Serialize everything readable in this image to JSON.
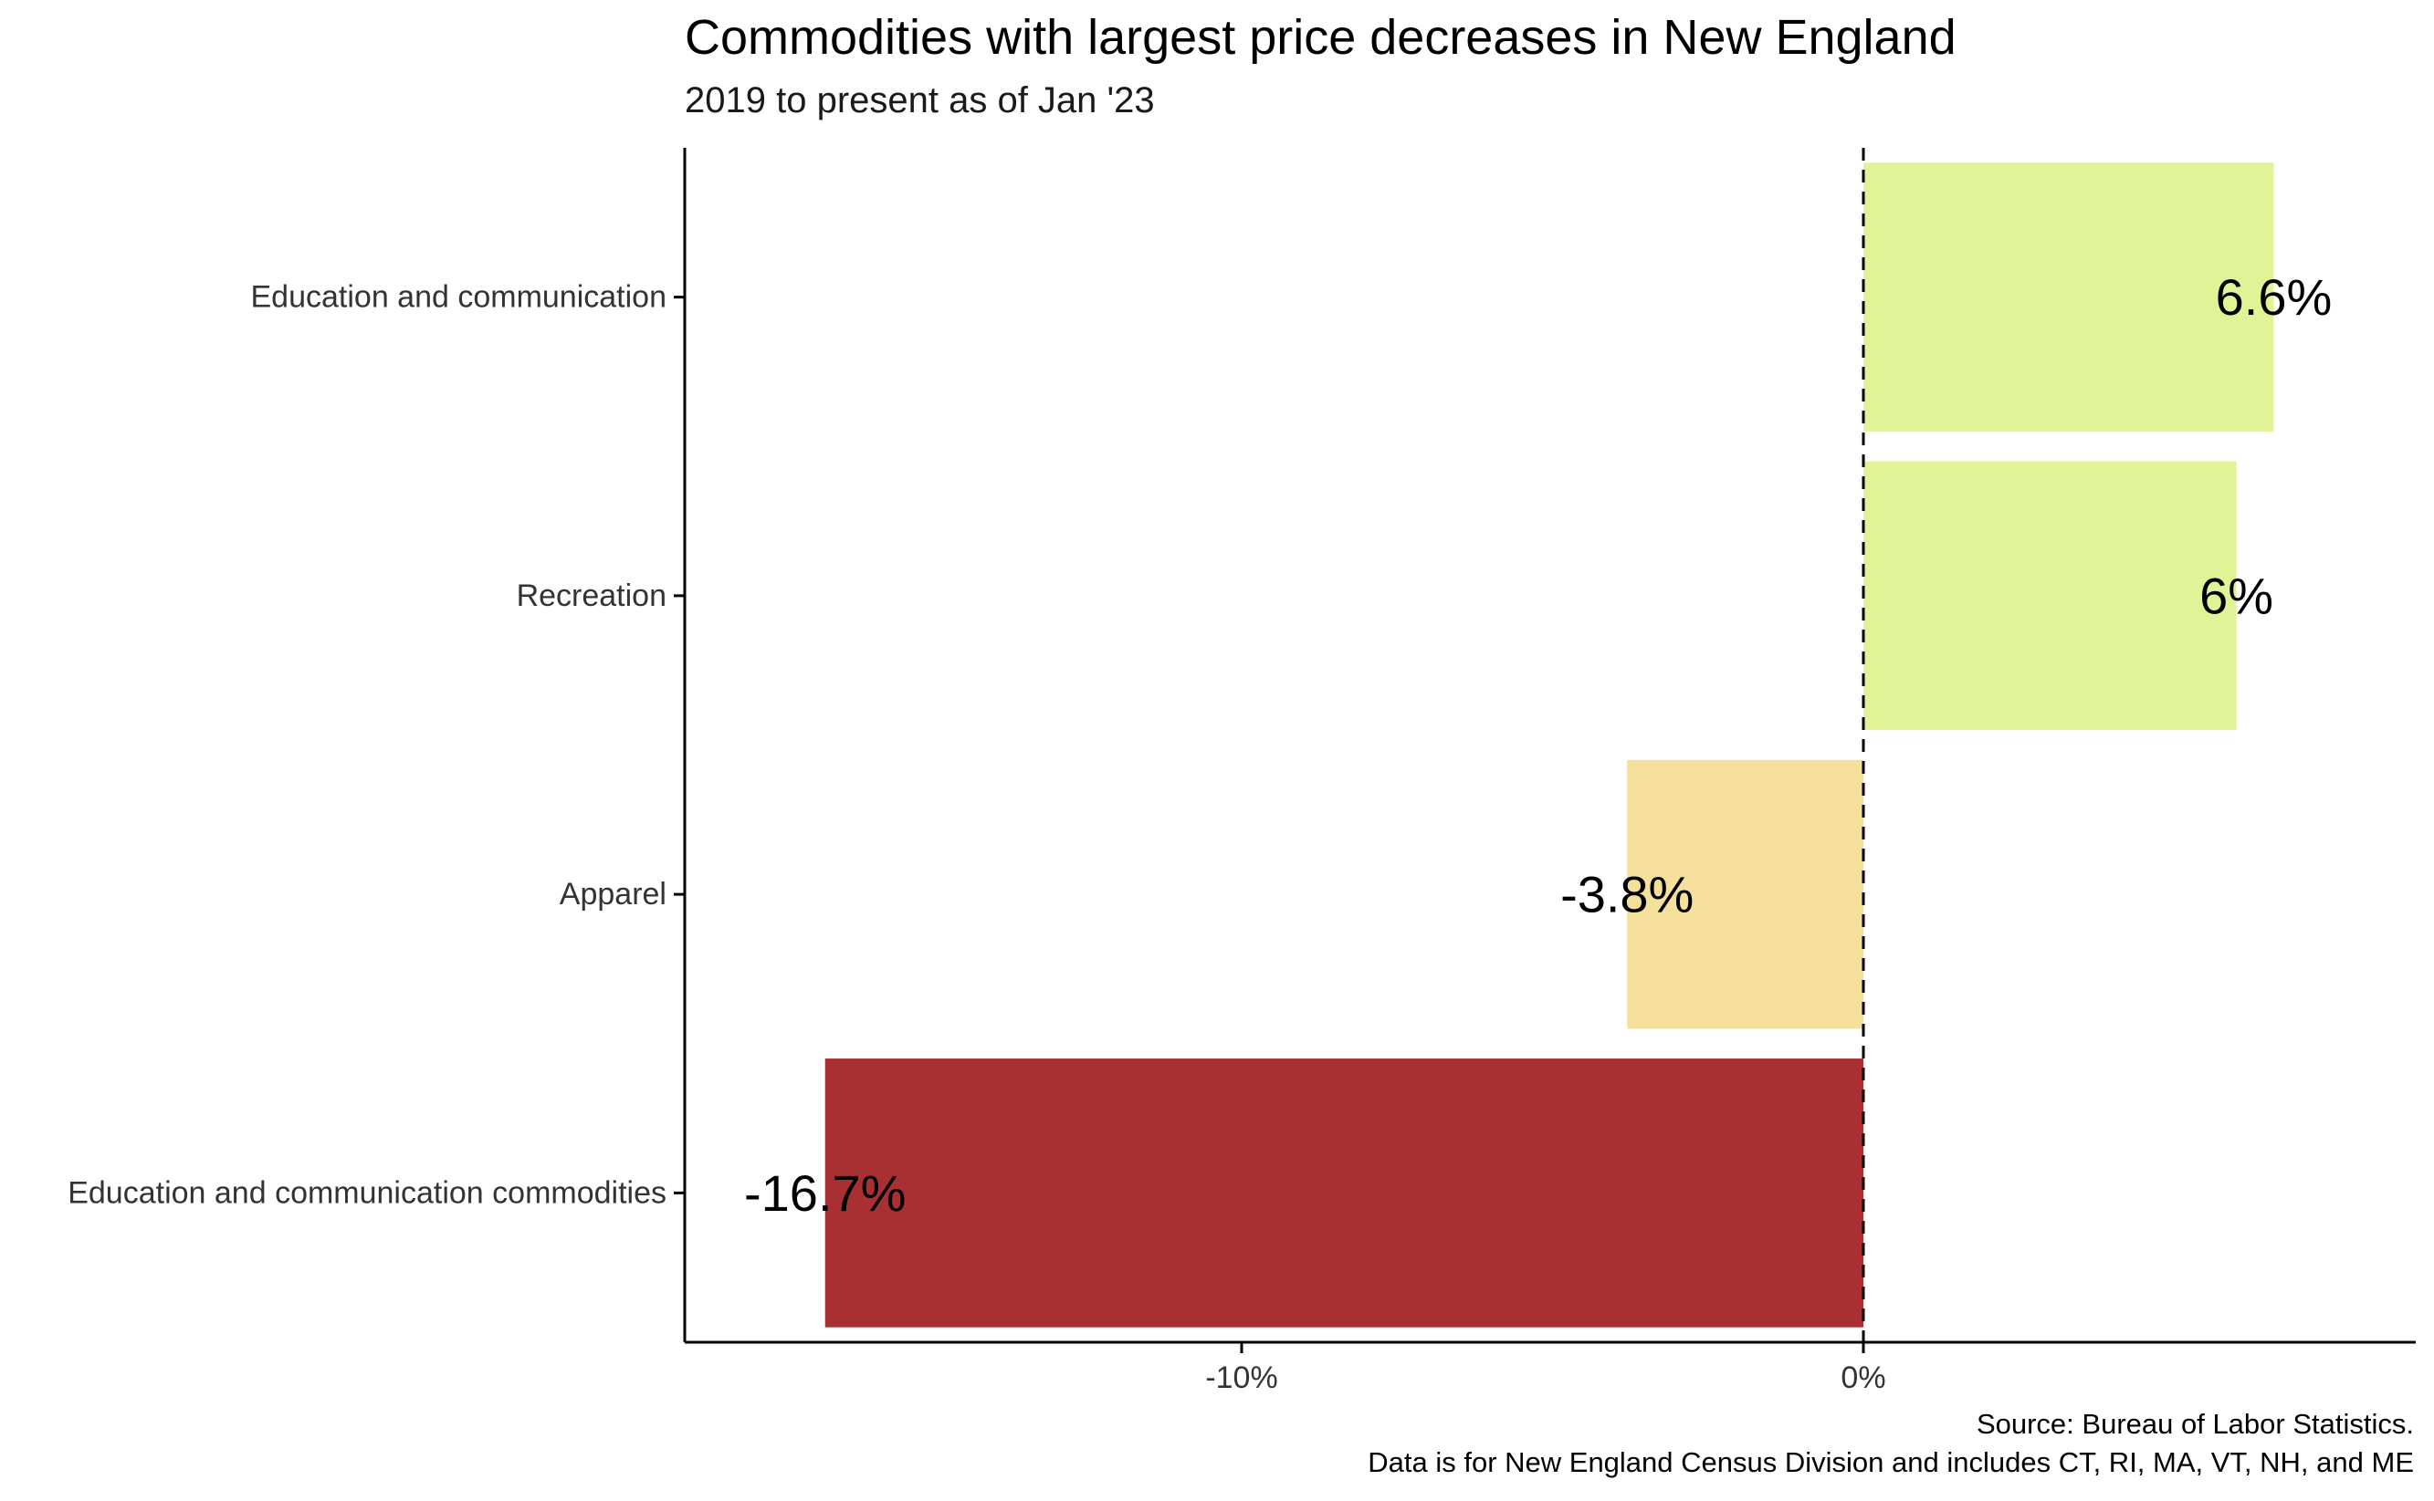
{
  "chart_data": {
    "type": "bar",
    "orientation": "horizontal",
    "title": "Commodities with largest price decreases in New England",
    "subtitle": "2019 to present as of Jan '23",
    "xlabel": "",
    "ylabel": "",
    "categories": [
      "Education and communication",
      "Recreation",
      "Apparel",
      "Education and communication commodities"
    ],
    "values": [
      6.6,
      6.0,
      -3.8,
      -16.7
    ],
    "data_labels": [
      "6.6%",
      "6%",
      "-3.8%",
      "-16.7%"
    ],
    "bar_colors": [
      "#e0f497",
      "#e0f497",
      "#f4df9b",
      "#a83032"
    ],
    "x_ticks": [
      -10,
      0
    ],
    "x_tick_labels": [
      "-10%",
      "0%"
    ],
    "xlim": [
      -19,
      8.8
    ],
    "reference_line": {
      "x": 0,
      "style": "dashed"
    },
    "grid": false,
    "legend": "none",
    "caption": [
      "Source: Bureau of Labor Statistics.",
      "Data is for New England Census Division and includes CT, RI, MA, VT, NH, and ME"
    ]
  }
}
